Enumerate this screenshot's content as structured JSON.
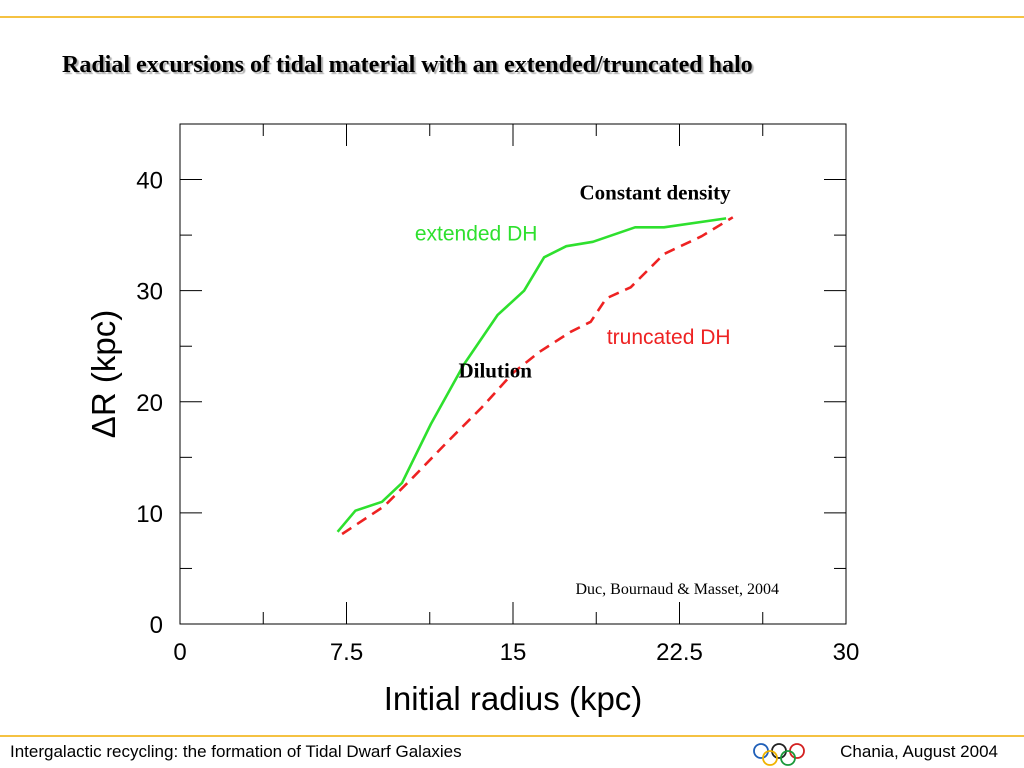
{
  "slide": {
    "title": "Radial excursions of tidal material with an extended/truncated halo",
    "footer_left": "Intergalactic recycling: the formation of Tidal Dwarf Galaxies",
    "footer_right": "Chania, August 2004",
    "accent_color": "#f5c242",
    "logo_icon": "olympic-rings-icon"
  },
  "chart_data": {
    "type": "line",
    "xlabel": "Initial radius (kpc)",
    "ylabel": "ΔR (kpc)",
    "xlim": [
      0,
      30
    ],
    "ylim": [
      0,
      45
    ],
    "xticks": [
      0,
      7.5,
      15,
      22.5,
      30
    ],
    "yticks": [
      0,
      10,
      20,
      30,
      40
    ],
    "grid": false,
    "series": [
      {
        "name": "extended DH",
        "color": "#2ee02e",
        "dash": false,
        "x": [
          7.1,
          7.9,
          9.1,
          10.0,
          11.3,
          12.8,
          14.3,
          15.5,
          16.4,
          17.4,
          18.6,
          20.5,
          21.8,
          24.6
        ],
        "y": [
          8.3,
          10.2,
          11.0,
          12.7,
          18.0,
          23.4,
          27.8,
          30.0,
          33.0,
          34.0,
          34.4,
          35.7,
          35.7,
          36.5
        ]
      },
      {
        "name": "truncated DH",
        "color": "#ee2222",
        "dash": true,
        "x": [
          7.3,
          9.2,
          10.5,
          12.0,
          13.6,
          15.0,
          16.2,
          17.6,
          18.5,
          19.2,
          20.3,
          21.8,
          23.5,
          24.9
        ],
        "y": [
          8.1,
          10.6,
          13.2,
          16.3,
          19.5,
          22.6,
          24.5,
          26.3,
          27.2,
          29.3,
          30.3,
          33.3,
          34.9,
          36.6
        ]
      }
    ],
    "annotations": [
      {
        "text": "Constant density",
        "x": 21.4,
        "y": 38.2
      },
      {
        "text": "Dilution",
        "x": 14.2,
        "y": 22.2
      },
      {
        "text": "Duc, Bournaud & Masset, 2004",
        "x": 22.4,
        "y": 2.7
      }
    ]
  }
}
